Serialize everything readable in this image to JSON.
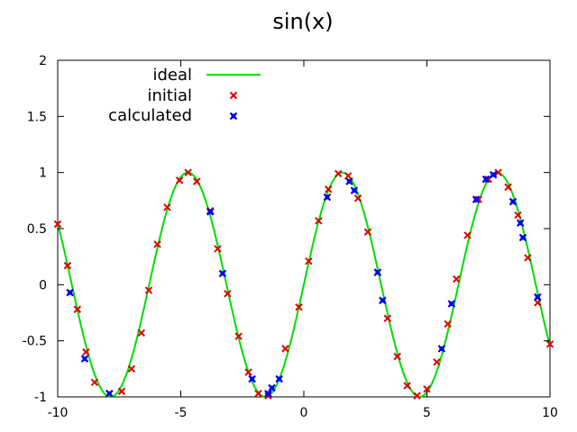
{
  "chart_data": {
    "type": "scatter",
    "title": "sin(x)",
    "xlabel": "",
    "ylabel": "",
    "xlim": [
      -10,
      10
    ],
    "ylim": [
      -1,
      2
    ],
    "grid": false,
    "legend_position": "top-left",
    "x_ticks": [
      "-10",
      "-5",
      "0",
      "5",
      "10"
    ],
    "y_ticks": [
      "-1",
      "-0.5",
      "0",
      "0.5",
      "1",
      "1.5",
      "2"
    ],
    "x_tick_values": [
      -10,
      -5,
      0,
      5,
      10
    ],
    "y_tick_values": [
      -1,
      -0.5,
      0,
      0.5,
      1,
      1.5,
      2
    ],
    "series": [
      {
        "name": "ideal",
        "style": "line",
        "color": "#00dd00",
        "function": "sin(x)",
        "x_range": [
          -10,
          10
        ]
      },
      {
        "name": "initial",
        "style": "points",
        "marker": "x",
        "color": "#dd0000",
        "points": [
          [
            -10.0,
            0.54
          ],
          [
            -9.6,
            0.17
          ],
          [
            -9.2,
            -0.22
          ],
          [
            -8.85,
            -0.6
          ],
          [
            -8.5,
            -0.87
          ],
          [
            -7.9,
            -0.97
          ],
          [
            -7.4,
            -0.95
          ],
          [
            -7.0,
            -0.75
          ],
          [
            -6.6,
            -0.43
          ],
          [
            -6.3,
            -0.05
          ],
          [
            -5.95,
            0.36
          ],
          [
            -5.55,
            0.69
          ],
          [
            -5.05,
            0.93
          ],
          [
            -4.7,
            1.0
          ],
          [
            -4.35,
            0.92
          ],
          [
            -3.8,
            0.66
          ],
          [
            -3.5,
            0.32
          ],
          [
            -3.1,
            -0.08
          ],
          [
            -2.65,
            -0.46
          ],
          [
            -2.25,
            -0.78
          ],
          [
            -1.85,
            -0.97
          ],
          [
            -1.45,
            -0.99
          ],
          [
            -0.75,
            -0.57
          ],
          [
            -0.2,
            -0.2
          ],
          [
            0.2,
            0.21
          ],
          [
            0.6,
            0.57
          ],
          [
            1.0,
            0.85
          ],
          [
            1.4,
            0.99
          ],
          [
            1.8,
            0.97
          ],
          [
            2.2,
            0.77
          ],
          [
            2.6,
            0.47
          ],
          [
            3.0,
            0.11
          ],
          [
            3.4,
            -0.3
          ],
          [
            3.8,
            -0.64
          ],
          [
            4.2,
            -0.9
          ],
          [
            4.6,
            -0.99
          ],
          [
            5.0,
            -0.93
          ],
          [
            5.4,
            -0.69
          ],
          [
            5.85,
            -0.35
          ],
          [
            6.2,
            0.05
          ],
          [
            6.65,
            0.44
          ],
          [
            7.1,
            0.76
          ],
          [
            7.5,
            0.94
          ],
          [
            7.9,
            1.0
          ],
          [
            8.3,
            0.87
          ],
          [
            8.7,
            0.62
          ],
          [
            9.1,
            0.24
          ],
          [
            9.5,
            -0.16
          ],
          [
            10.0,
            -0.53
          ]
        ]
      },
      {
        "name": "calculated",
        "style": "points",
        "marker": "box",
        "color": "#0000ee",
        "points": [
          [
            -9.5,
            -0.07
          ],
          [
            -8.9,
            -0.66
          ],
          [
            -7.9,
            -0.97
          ],
          [
            -3.8,
            0.65
          ],
          [
            -3.3,
            0.1
          ],
          [
            -2.1,
            -0.84
          ],
          [
            -1.45,
            -0.97
          ],
          [
            -1.3,
            -0.92
          ],
          [
            -1.0,
            -0.84
          ],
          [
            0.95,
            0.78
          ],
          [
            1.85,
            0.92
          ],
          [
            2.05,
            0.84
          ],
          [
            3.0,
            0.11
          ],
          [
            3.2,
            -0.14
          ],
          [
            5.6,
            -0.57
          ],
          [
            6.0,
            -0.17
          ],
          [
            7.0,
            0.76
          ],
          [
            7.4,
            0.94
          ],
          [
            7.7,
            0.98
          ],
          [
            8.5,
            0.74
          ],
          [
            8.8,
            0.55
          ],
          [
            8.9,
            0.42
          ],
          [
            9.5,
            -0.11
          ]
        ]
      }
    ]
  }
}
